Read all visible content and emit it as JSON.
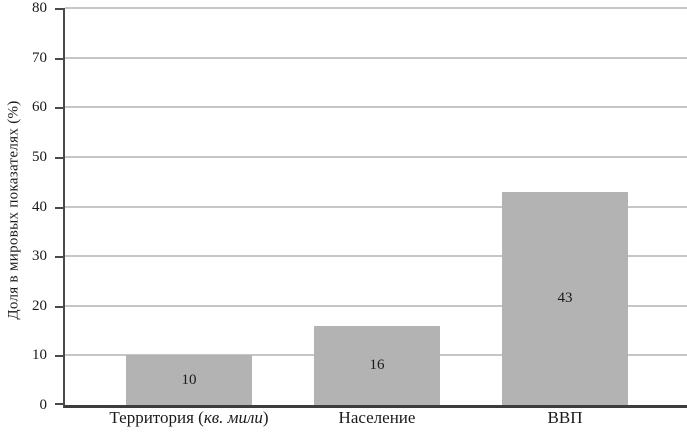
{
  "chart_data": {
    "type": "bar",
    "title": "",
    "ylabel": "Доля в мировых показателях (%)",
    "xlabel": "",
    "ylim": [
      0,
      80
    ],
    "yticks": [
      0,
      10,
      20,
      30,
      40,
      50,
      60,
      70,
      80
    ],
    "grid": true,
    "legend": false,
    "categories": [
      "Территория (кв. мили)",
      "Население",
      "ВВП"
    ],
    "category_parts": [
      {
        "prefix": "Территория (",
        "italic": "кв. мили",
        "suffix": ")"
      },
      {
        "prefix": "Население",
        "italic": "",
        "suffix": ""
      },
      {
        "prefix": "ВВП",
        "italic": "",
        "suffix": ""
      }
    ],
    "values": [
      10,
      16,
      43
    ],
    "bar_value_labels": [
      "10",
      "16",
      "43"
    ],
    "colors": {
      "bar_fill": "#b3b3b3",
      "gridline": "#c6c6c6",
      "axis": "#4a4a4a",
      "text": "#1a1a1a"
    }
  }
}
